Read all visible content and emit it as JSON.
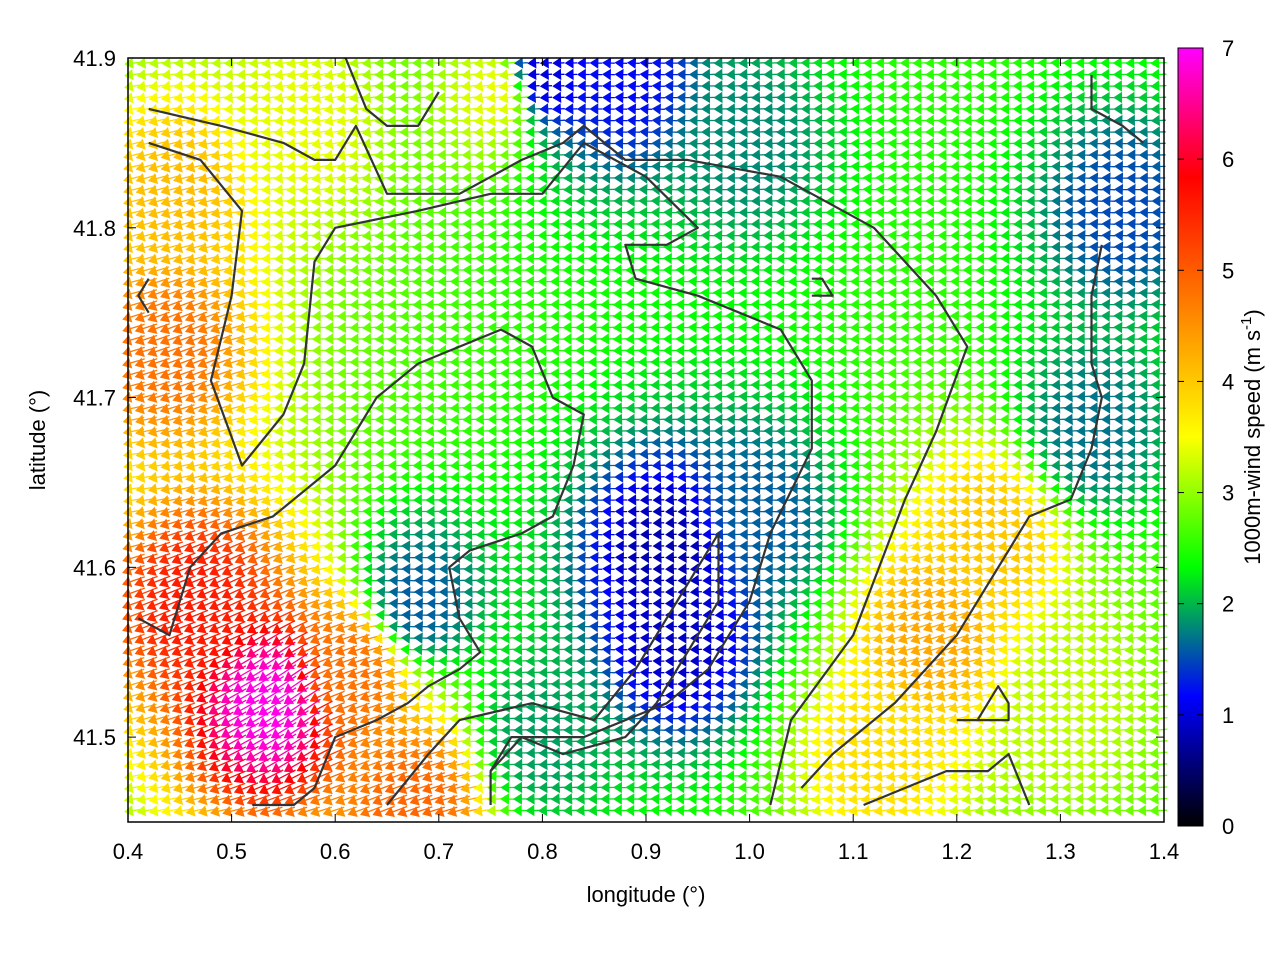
{
  "chart_data": {
    "type": "vector-field",
    "xlabel": "longitude (°)",
    "ylabel": "latitude (°)",
    "xlim": [
      0.4,
      1.4
    ],
    "ylim": [
      41.45,
      41.9
    ],
    "xticks": [
      "0.4",
      "0.5",
      "0.6",
      "0.7",
      "0.8",
      "0.9",
      "1.0",
      "1.1",
      "1.2",
      "1.3",
      "1.4"
    ],
    "yticks": [
      "41.5",
      "41.6",
      "41.7",
      "41.8",
      "41.9"
    ],
    "colorbar": {
      "label": "1000m-wind speed (m s",
      "label_sup": "-1",
      "label_end": ")",
      "range": [
        0,
        7
      ],
      "ticks": [
        "0",
        "1",
        "2",
        "3",
        "4",
        "5",
        "6",
        "7"
      ],
      "colors": [
        "#000000",
        "#0000ff",
        "#00ff00",
        "#ffff00",
        "#ff8000",
        "#ff0000",
        "#ff00ff"
      ]
    },
    "wind_direction": "from east (vectors point west / north-west)",
    "contour_color": "#333333",
    "wind_regions": [
      {
        "lon": 0.54,
        "lat": 41.52,
        "speed": 6.9,
        "note": "maximum"
      },
      {
        "lon": 0.47,
        "lat": 41.58,
        "speed": 5.6
      },
      {
        "lon": 0.44,
        "lat": 41.73,
        "speed": 4.8
      },
      {
        "lon": 0.45,
        "lat": 41.82,
        "speed": 4.1
      },
      {
        "lon": 0.62,
        "lat": 41.54,
        "speed": 4.8
      },
      {
        "lon": 0.68,
        "lat": 41.46,
        "speed": 4.9
      },
      {
        "lon": 1.18,
        "lat": 41.56,
        "speed": 4.3
      },
      {
        "lon": 1.24,
        "lat": 41.62,
        "speed": 4.0
      },
      {
        "lon": 1.13,
        "lat": 41.49,
        "speed": 3.8
      },
      {
        "lon": 1.31,
        "lat": 41.52,
        "speed": 3.2
      },
      {
        "lon": 0.76,
        "lat": 41.88,
        "speed": 3.4
      },
      {
        "lon": 0.57,
        "lat": 41.86,
        "speed": 3.4
      },
      {
        "lon": 0.92,
        "lat": 41.61,
        "speed": 0.8,
        "note": "minimum"
      },
      {
        "lon": 0.93,
        "lat": 41.56,
        "speed": 0.9
      },
      {
        "lon": 0.8,
        "lat": 41.89,
        "speed": 1.0
      },
      {
        "lon": 0.88,
        "lat": 41.89,
        "speed": 1.2
      },
      {
        "lon": 1.36,
        "lat": 41.81,
        "speed": 1.5
      },
      {
        "lon": 1.01,
        "lat": 41.63,
        "speed": 1.6
      },
      {
        "lon": 0.68,
        "lat": 41.58,
        "speed": 1.6
      },
      {
        "lon": 1.33,
        "lat": 41.68,
        "speed": 1.7
      },
      {
        "lon": 1.0,
        "lat": 41.85,
        "speed": 1.8
      },
      {
        "lon": 0.8,
        "lat": 41.5,
        "speed": 1.9
      }
    ],
    "contours": [
      [
        [
          0.42,
          41.87
        ],
        [
          0.49,
          41.86
        ],
        [
          0.55,
          41.85
        ],
        [
          0.58,
          41.84
        ],
        [
          0.6,
          41.84
        ],
        [
          0.62,
          41.86
        ],
        [
          0.65,
          41.82
        ],
        [
          0.72,
          41.82
        ],
        [
          0.78,
          41.84
        ],
        [
          0.82,
          41.85
        ],
        [
          0.84,
          41.86
        ],
        [
          0.88,
          41.84
        ],
        [
          0.94,
          41.84
        ],
        [
          1.03,
          41.83
        ],
        [
          1.12,
          41.8
        ],
        [
          1.18,
          41.76
        ],
        [
          1.21,
          41.73
        ],
        [
          1.18,
          41.68
        ],
        [
          1.15,
          41.64
        ],
        [
          1.1,
          41.56
        ],
        [
          1.04,
          41.51
        ],
        [
          1.02,
          41.46
        ]
      ],
      [
        [
          0.42,
          41.85
        ],
        [
          0.47,
          41.84
        ],
        [
          0.51,
          41.81
        ],
        [
          0.5,
          41.76
        ],
        [
          0.48,
          41.71
        ],
        [
          0.51,
          41.66
        ],
        [
          0.55,
          41.69
        ],
        [
          0.57,
          41.72
        ],
        [
          0.58,
          41.78
        ],
        [
          0.6,
          41.8
        ],
        [
          0.68,
          41.81
        ],
        [
          0.75,
          41.82
        ],
        [
          0.8,
          41.82
        ],
        [
          0.84,
          41.85
        ],
        [
          0.9,
          41.83
        ],
        [
          0.95,
          41.8
        ],
        [
          0.92,
          41.79
        ],
        [
          0.88,
          41.79
        ],
        [
          0.89,
          41.77
        ],
        [
          0.95,
          41.76
        ],
        [
          1.03,
          41.74
        ],
        [
          1.06,
          41.71
        ],
        [
          1.06,
          41.67
        ],
        [
          1.02,
          41.62
        ],
        [
          1.0,
          41.58
        ],
        [
          0.96,
          41.54
        ],
        [
          0.92,
          41.52
        ],
        [
          0.84,
          41.5
        ],
        [
          0.77,
          41.5
        ],
        [
          0.75,
          41.48
        ],
        [
          0.75,
          41.46
        ]
      ],
      [
        [
          0.41,
          41.57
        ],
        [
          0.44,
          41.56
        ],
        [
          0.46,
          41.6
        ],
        [
          0.49,
          41.62
        ],
        [
          0.54,
          41.63
        ],
        [
          0.6,
          41.66
        ],
        [
          0.64,
          41.7
        ],
        [
          0.68,
          41.72
        ],
        [
          0.72,
          41.73
        ],
        [
          0.76,
          41.74
        ],
        [
          0.79,
          41.73
        ],
        [
          0.81,
          41.7
        ],
        [
          0.84,
          41.69
        ],
        [
          0.83,
          41.66
        ],
        [
          0.81,
          41.63
        ],
        [
          0.78,
          41.62
        ],
        [
          0.73,
          41.61
        ],
        [
          0.71,
          41.6
        ],
        [
          0.72,
          41.57
        ],
        [
          0.74,
          41.55
        ],
        [
          0.72,
          41.54
        ],
        [
          0.69,
          41.53
        ],
        [
          0.67,
          41.52
        ],
        [
          0.64,
          41.51
        ],
        [
          0.6,
          41.5
        ],
        [
          0.58,
          41.47
        ],
        [
          0.56,
          41.46
        ],
        [
          0.52,
          41.46
        ]
      ],
      [
        [
          0.65,
          41.46
        ],
        [
          0.69,
          41.49
        ],
        [
          0.72,
          41.51
        ],
        [
          0.79,
          41.52
        ],
        [
          0.85,
          41.51
        ],
        [
          0.89,
          41.54
        ],
        [
          0.92,
          41.57
        ],
        [
          0.95,
          41.6
        ],
        [
          0.97,
          41.62
        ],
        [
          0.97,
          41.58
        ],
        [
          0.94,
          41.55
        ],
        [
          0.91,
          41.52
        ],
        [
          0.88,
          41.5
        ],
        [
          0.82,
          41.49
        ],
        [
          0.78,
          41.5
        ],
        [
          0.75,
          41.48
        ]
      ],
      [
        [
          1.11,
          41.46
        ],
        [
          1.15,
          41.47
        ],
        [
          1.19,
          41.48
        ],
        [
          1.23,
          41.48
        ],
        [
          1.25,
          41.49
        ],
        [
          1.27,
          41.46
        ]
      ],
      [
        [
          1.34,
          41.79
        ],
        [
          1.33,
          41.76
        ],
        [
          1.33,
          41.72
        ],
        [
          1.34,
          41.7
        ],
        [
          1.33,
          41.67
        ],
        [
          1.31,
          41.64
        ],
        [
          1.27,
          41.63
        ],
        [
          1.25,
          41.61
        ],
        [
          1.2,
          41.56
        ],
        [
          1.14,
          41.52
        ],
        [
          1.08,
          41.49
        ],
        [
          1.05,
          41.47
        ]
      ],
      [
        [
          0.7,
          41.88
        ],
        [
          0.68,
          41.86
        ],
        [
          0.65,
          41.86
        ],
        [
          0.63,
          41.87
        ],
        [
          0.61,
          41.9
        ]
      ],
      [
        [
          1.33,
          41.89
        ],
        [
          1.33,
          41.87
        ],
        [
          1.36,
          41.86
        ],
        [
          1.38,
          41.85
        ]
      ],
      [
        [
          1.2,
          41.51
        ],
        [
          1.22,
          41.51
        ],
        [
          1.24,
          41.53
        ],
        [
          1.25,
          41.52
        ],
        [
          1.25,
          41.51
        ],
        [
          1.22,
          41.51
        ]
      ],
      [
        [
          1.06,
          41.77
        ],
        [
          1.07,
          41.77
        ],
        [
          1.08,
          41.76
        ],
        [
          1.06,
          41.76
        ]
      ],
      [
        [
          0.42,
          41.75
        ],
        [
          0.41,
          41.76
        ],
        [
          0.42,
          41.77
        ]
      ]
    ]
  }
}
